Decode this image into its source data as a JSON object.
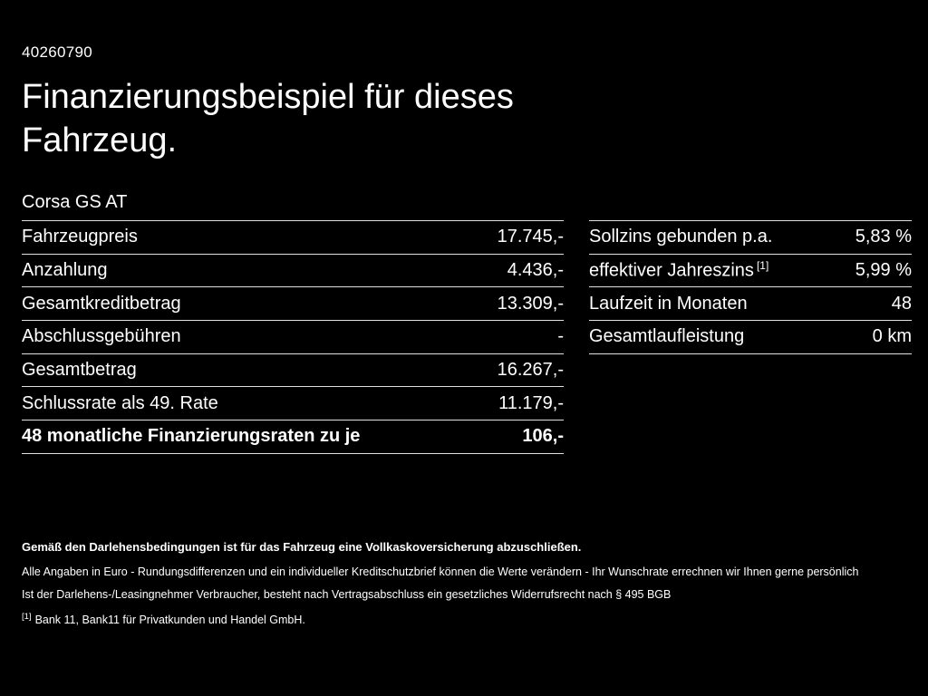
{
  "doc_id": "40260790",
  "title": "Finanzierungsbeispiel für dieses Fahrzeug.",
  "model": "Corsa GS AT",
  "left_table": {
    "rows": [
      {
        "label": "Fahrzeugpreis",
        "value": "17.745,-"
      },
      {
        "label": "Anzahlung",
        "value": "4.436,-"
      },
      {
        "label": "Gesamtkreditbetrag",
        "value": "13.309,-"
      },
      {
        "label": "Abschlussgebühren",
        "value": "-"
      },
      {
        "label": "Gesamtbetrag",
        "value": "16.267,-"
      },
      {
        "label": "Schlussrate als 49. Rate",
        "value": "11.179,-"
      },
      {
        "label": "48 monatliche Finanzierungsraten zu je",
        "value": "106,-"
      }
    ]
  },
  "right_table": {
    "rows": [
      {
        "label": "Sollzins gebunden p.a.",
        "value": "5,83 %"
      },
      {
        "label": "effektiver Jahreszins",
        "sup": "[1]",
        "value": "5,99 %"
      },
      {
        "label": "Laufzeit in Monaten",
        "value": "48"
      },
      {
        "label": "Gesamtlaufleistung",
        "value": "0 km"
      }
    ]
  },
  "footer": {
    "line1": "Gemäß den Darlehensbedingungen ist für das Fahrzeug eine Vollkaskoversicherung abzuschließen.",
    "line2": "Alle Angaben in Euro - Rundungsdifferenzen und ein individueller Kreditschutzbrief können die Werte verändern - Ihr Wunschrate errechnen wir Ihnen gerne persönlich",
    "line3": "Ist der Darlehens-/Leasingnehmer Verbraucher, besteht nach Vertragsabschluss ein gesetzliches Widerrufsrecht nach § 495 BGB",
    "footnote_marker": "[1]",
    "footnote_text": "Bank 11, Bank11 für Privatkunden und Handel GmbH."
  }
}
